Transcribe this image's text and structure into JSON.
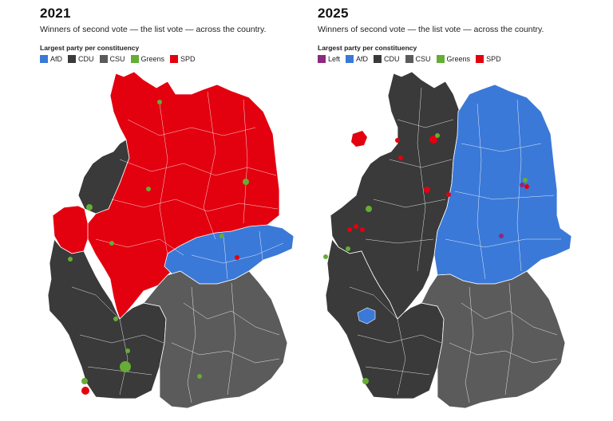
{
  "colors": {
    "afd": "#3b79d8",
    "cdu": "#3a3a3a",
    "csu": "#5b5b5b",
    "greens": "#65ad35",
    "spd": "#e3000f",
    "left": "#8b2a80",
    "border": "#ffffff"
  },
  "maps": [
    {
      "year": "2021",
      "subtitle": "Winners of second vote — the list vote — across the country.",
      "legend_title": "Largest party per constituency",
      "legend": [
        {
          "label": "AfD",
          "color": "#3b79d8"
        },
        {
          "label": "CDU",
          "color": "#3a3a3a"
        },
        {
          "label": "CSU",
          "color": "#5b5b5b"
        },
        {
          "label": "Greens",
          "color": "#65ad35"
        },
        {
          "label": "SPD",
          "color": "#e3000f"
        }
      ]
    },
    {
      "year": "2025",
      "subtitle": "Winners of second vote — the list vote — across the country.",
      "legend_title": "Largest party per constituency",
      "legend": [
        {
          "label": "Left",
          "color": "#8b2a80"
        },
        {
          "label": "AfD",
          "color": "#3b79d8"
        },
        {
          "label": "CDU",
          "color": "#3a3a3a"
        },
        {
          "label": "CSU",
          "color": "#5b5b5b"
        },
        {
          "label": "Greens",
          "color": "#65ad35"
        },
        {
          "label": "SPD",
          "color": "#e3000f"
        }
      ]
    }
  ]
}
